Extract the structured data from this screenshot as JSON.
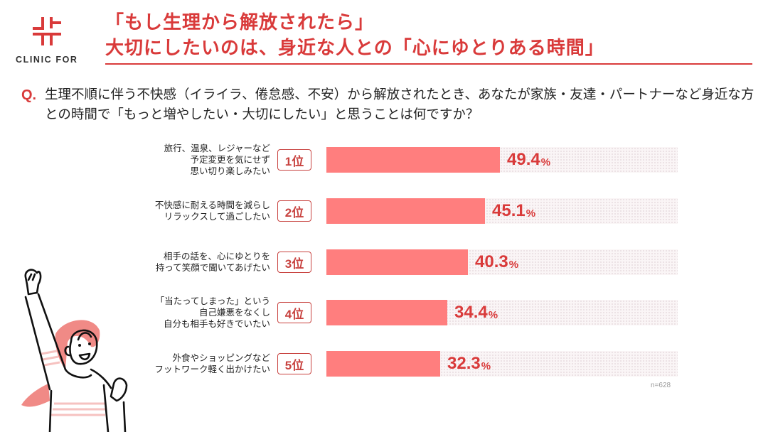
{
  "brand": {
    "name": "CLINIC FOR",
    "color": "#d93a3a"
  },
  "title": {
    "line1": "「もし生理から解放されたら」",
    "line2": "大切にしたいのは、身近な人との「心にゆとりある時間」"
  },
  "question": {
    "mark": "Q.",
    "text": "生理不順に伴う不快感（イライラ、倦怠感、不安）から解放されたとき、あなたが家族・友達・パートナーなど身近な方との時間で「もっと増やしたい・大切にしたい」と思うことは何ですか？"
  },
  "sample_note": "n=628",
  "colors": {
    "bar": "#ff7e7e",
    "value_text": "#d93a3a",
    "rank_border": "#c8423f",
    "track": "#faf5f6"
  },
  "chart_data": {
    "type": "bar",
    "orientation": "horizontal",
    "title": "「もし生理から解放されたら」大切にしたいのは、身近な人との「心にゆとりある時間」",
    "categories": [
      "旅行、温泉、レジャーなど予定変更を気にせず思い切り楽しみたい",
      "不快感に耐える時間を減らしリラックスして過ごしたい",
      "相手の話を、心にゆとりを持って笑顔で聞いてあげたい",
      "「当たってしまった」という自己嫌悪をなくし自分も相手も好きでいたい",
      "外食やショッピングなどフットワーク軽く出かけたい"
    ],
    "ranks": [
      "1位",
      "2位",
      "3位",
      "4位",
      "5位"
    ],
    "values": [
      49.4,
      45.1,
      40.3,
      34.4,
      32.3
    ],
    "unit": "%",
    "xlabel": "",
    "ylabel": "",
    "xlim": [
      0,
      100
    ],
    "grid": false,
    "legend": null,
    "n": 628
  },
  "rows": [
    {
      "label": "旅行、温泉、レジャーなど\n予定変更を気にせず\n思い切り楽しみたい",
      "rank": "1位",
      "value": "49.4",
      "unit": "%"
    },
    {
      "label": "不快感に耐える時間を減らし\nリラックスして過ごしたい",
      "rank": "2位",
      "value": "45.1",
      "unit": "%"
    },
    {
      "label": "相手の話を、心にゆとりを\n持って笑顔で聞いてあげたい",
      "rank": "3位",
      "value": "40.3",
      "unit": "%"
    },
    {
      "label": "「当たってしまった」という\n自己嫌悪をなくし\n自分も相手も好きでいたい",
      "rank": "4位",
      "value": "34.4",
      "unit": "%"
    },
    {
      "label": "外食やショッピングなど\nフットワーク軽く出かけたい",
      "rank": "5位",
      "value": "32.3",
      "unit": "%"
    }
  ],
  "illustration": {
    "icon": "cheering-woman-illustration"
  }
}
